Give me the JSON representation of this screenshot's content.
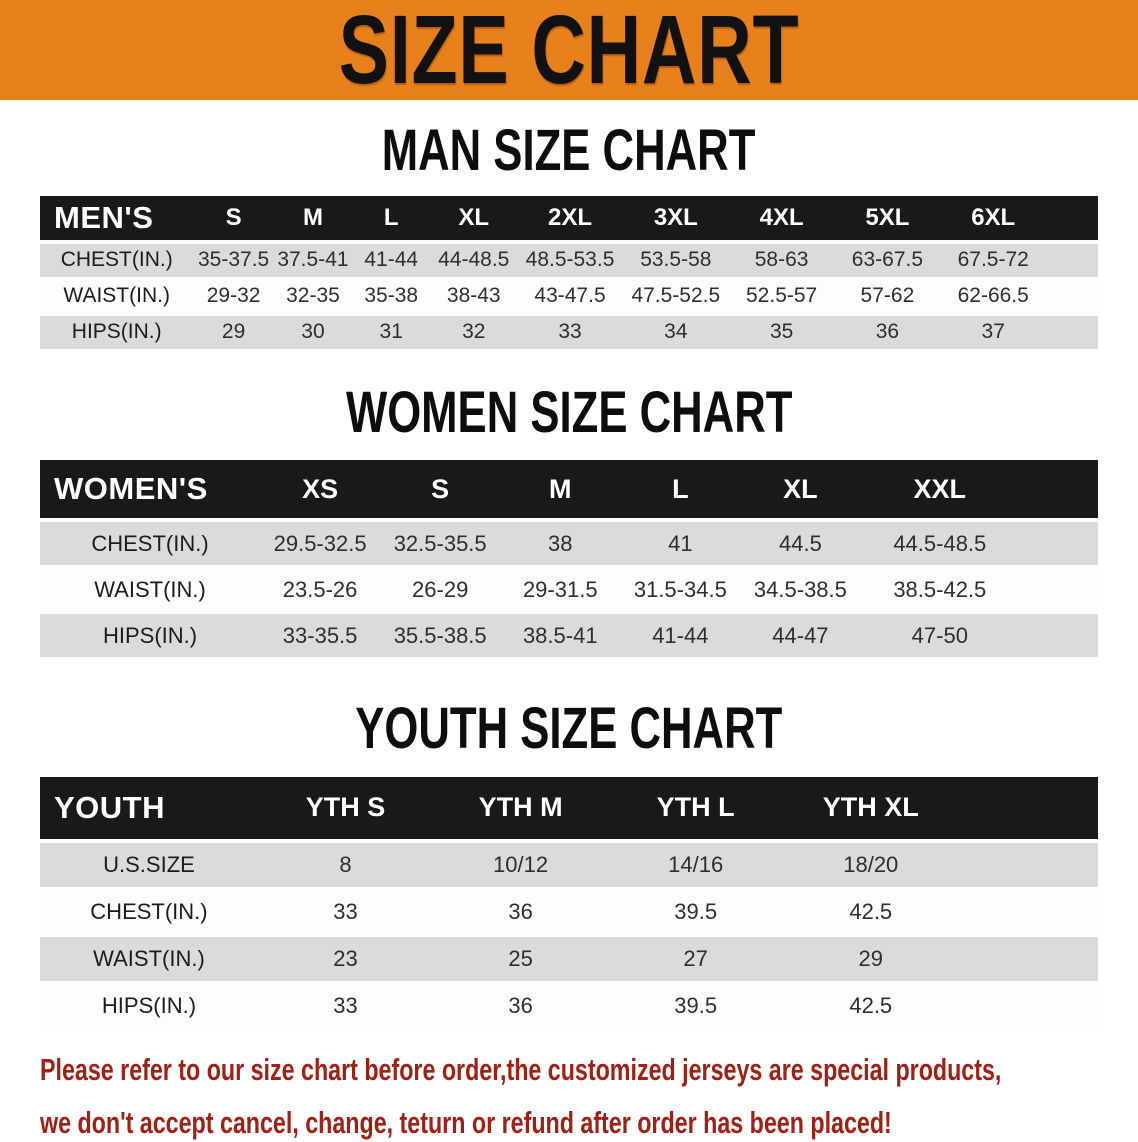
{
  "banner": {
    "title": "SIZE CHART",
    "background_color": "#E8801B"
  },
  "sections": [
    {
      "heading": "MAN SIZE CHART",
      "table": {
        "header_label": "MEN'S",
        "columns": [
          "S",
          "M",
          "L",
          "XL",
          "2XL",
          "3XL",
          "4XL",
          "5XL",
          "6XL"
        ],
        "rows": [
          {
            "label": "CHEST(IN.)",
            "values": [
              "35-37.5",
              "37.5-41",
              "41-44",
              "44-48.5",
              "48.5-53.5",
              "53.5-58",
              "58-63",
              "63-67.5",
              "67.5-72"
            ]
          },
          {
            "label": "WAIST(IN.)",
            "values": [
              "29-32",
              "32-35",
              "35-38",
              "38-43",
              "43-47.5",
              "47.5-52.5",
              "52.5-57",
              "57-62",
              "62-66.5"
            ]
          },
          {
            "label": "HIPS(IN.)",
            "values": [
              "29",
              "30",
              "31",
              "32",
              "33",
              "34",
              "35",
              "36",
              "37"
            ]
          }
        ]
      }
    },
    {
      "heading": "WOMEN SIZE CHART",
      "table": {
        "header_label": "WOMEN'S",
        "columns": [
          "XS",
          "S",
          "M",
          "L",
          "XL",
          "XXL"
        ],
        "rows": [
          {
            "label": "CHEST(IN.)",
            "values": [
              "29.5-32.5",
              "32.5-35.5",
              "38",
              "41",
              "44.5",
              "44.5-48.5"
            ]
          },
          {
            "label": "WAIST(IN.)",
            "values": [
              "23.5-26",
              "26-29",
              "29-31.5",
              "31.5-34.5",
              "34.5-38.5",
              "38.5-42.5"
            ]
          },
          {
            "label": "HIPS(IN.)",
            "values": [
              "33-35.5",
              "35.5-38.5",
              "38.5-41",
              "41-44",
              "44-47",
              "47-50"
            ]
          }
        ]
      }
    },
    {
      "heading": "YOUTH SIZE CHART",
      "table": {
        "header_label": "YOUTH",
        "columns": [
          "YTH S",
          "YTH M",
          "YTH L",
          "YTH XL"
        ],
        "rows": [
          {
            "label": "U.S.SIZE",
            "values": [
              "8",
              "10/12",
              "14/16",
              "18/20"
            ]
          },
          {
            "label": "CHEST(IN.)",
            "values": [
              "33",
              "36",
              "39.5",
              "42.5"
            ]
          },
          {
            "label": "WAIST(IN.)",
            "values": [
              "23",
              "25",
              "27",
              "29"
            ]
          },
          {
            "label": "HIPS(IN.)",
            "values": [
              "33",
              "36",
              "39.5",
              "42.5"
            ]
          }
        ]
      }
    }
  ],
  "disclaimer": {
    "line1": "Please refer to our size chart before order,the customized jerseys are special products,",
    "line2": "we don't accept cancel, change, teturn or refund after order has been placed!",
    "text_color": "#A02015"
  }
}
